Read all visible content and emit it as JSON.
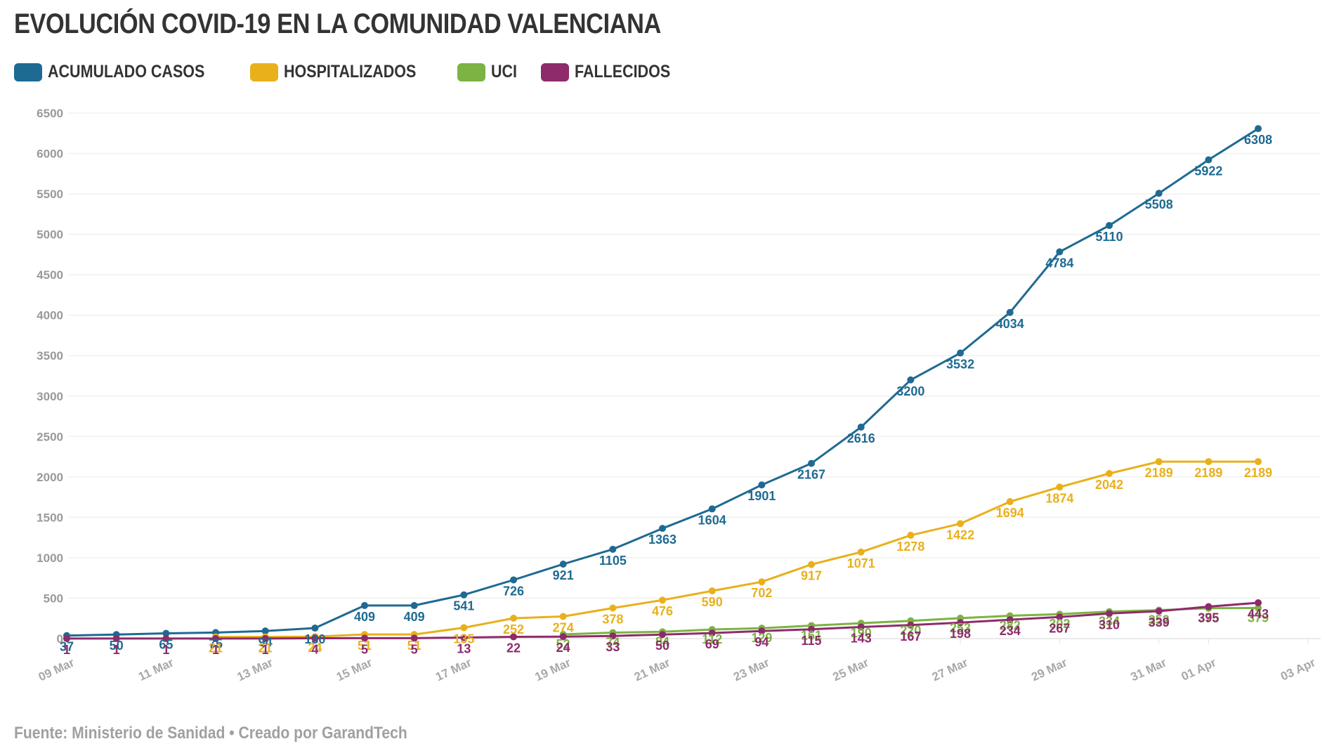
{
  "title": "EVOLUCIÓN COVID-19 EN LA COMUNIDAD VALENCIANA",
  "source": "Fuente: Ministerio de Sanidad • Creado por GarandTech",
  "legend": [
    {
      "label": "ACUMULADO CASOS",
      "color": "#1f6a92"
    },
    {
      "label": "HOSPITALIZADOS",
      "color": "#e9b01c"
    },
    {
      "label": "UCI",
      "color": "#7cb342"
    },
    {
      "label": "FALLECIDOS",
      "color": "#8e2b6b"
    }
  ],
  "chart_data": {
    "type": "line",
    "title": "EVOLUCIÓN COVID-19 EN LA COMUNIDAD VALENCIANA",
    "xlabel": "",
    "ylabel": "",
    "ylim": [
      0,
      6500
    ],
    "yticks": [
      0,
      500,
      1000,
      1500,
      2000,
      2500,
      3000,
      3500,
      4000,
      4500,
      5000,
      5500,
      6000,
      6500
    ],
    "grid": true,
    "legend_position": "top-left",
    "x": [
      "09 Mar",
      "10 Mar",
      "11 Mar",
      "12 Mar",
      "13 Mar",
      "14 Mar",
      "15 Mar",
      "16 Mar",
      "17 Mar",
      "18 Mar",
      "19 Mar",
      "20 Mar",
      "21 Mar",
      "22 Mar",
      "23 Mar",
      "24 Mar",
      "25 Mar",
      "26 Mar",
      "27 Mar",
      "28 Mar",
      "29 Mar",
      "30 Mar",
      "31 Mar",
      "01 Apr",
      "02 Apr"
    ],
    "xticks": [
      {
        "label": "09 Mar",
        "index": 0
      },
      {
        "label": "11 Mar",
        "index": 2
      },
      {
        "label": "13 Mar",
        "index": 4
      },
      {
        "label": "15 Mar",
        "index": 6
      },
      {
        "label": "17 Mar",
        "index": 8
      },
      {
        "label": "19 Mar",
        "index": 10
      },
      {
        "label": "21 Mar",
        "index": 12
      },
      {
        "label": "23 Mar",
        "index": 14
      },
      {
        "label": "25 Mar",
        "index": 16
      },
      {
        "label": "27 Mar",
        "index": 18
      },
      {
        "label": "29 Mar",
        "index": 20
      },
      {
        "label": "31 Mar",
        "index": 22
      },
      {
        "label": "01 Apr",
        "index": 23
      },
      {
        "label": "03 Apr",
        "index": 25
      }
    ],
    "series": [
      {
        "name": "ACUMULADO CASOS",
        "color": "#1f6a92",
        "values": [
          37,
          50,
          65,
          75,
          94,
          130,
          409,
          409,
          541,
          726,
          921,
          1105,
          1363,
          1604,
          1901,
          2167,
          2616,
          3200,
          3532,
          4034,
          4784,
          5110,
          5508,
          5922,
          6308
        ]
      },
      {
        "name": "HOSPITALIZADOS",
        "color": "#e9b01c",
        "values": [
          null,
          null,
          null,
          21,
          21,
          24,
          51,
          51,
          135,
          252,
          274,
          378,
          476,
          590,
          702,
          917,
          1071,
          1278,
          1422,
          1694,
          1874,
          2042,
          2189,
          2189,
          2189
        ]
      },
      {
        "name": "UCI",
        "color": "#7cb342",
        "values": [
          null,
          null,
          null,
          null,
          null,
          null,
          null,
          null,
          null,
          null,
          52,
          74,
          84,
          112,
          129,
          161,
          190,
          220,
          253,
          282,
          302,
          334,
          352,
          375,
          379
        ]
      },
      {
        "name": "FALLECIDOS",
        "color": "#8e2b6b",
        "values": [
          1,
          1,
          1,
          1,
          1,
          4,
          5,
          5,
          13,
          22,
          24,
          33,
          50,
          69,
          94,
          115,
          143,
          167,
          198,
          234,
          267,
          310,
          339,
          395,
          443
        ]
      }
    ]
  }
}
